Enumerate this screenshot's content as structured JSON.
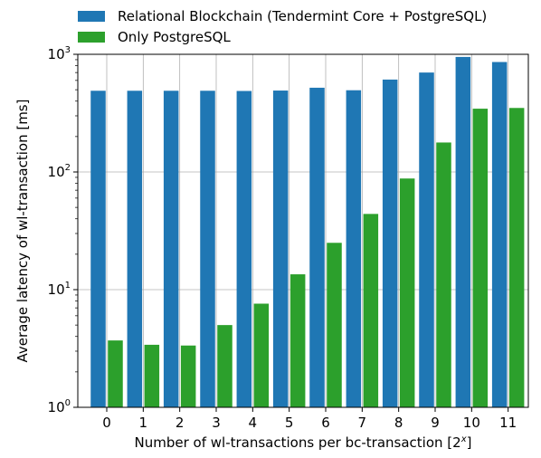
{
  "chart_data": {
    "type": "bar",
    "title": "",
    "xlabel": "Number of wl-transactions per bc-transaction [2",
    "xlabel_sup": "x",
    "xlabel_end": "]",
    "ylabel": "Average latency of wl-transaction [ms]",
    "yscale": "log",
    "ylim": [
      1,
      1000
    ],
    "yticks": [
      {
        "value": 1,
        "base": "10",
        "exp": "0"
      },
      {
        "value": 10,
        "base": "10",
        "exp": "1"
      },
      {
        "value": 100,
        "base": "10",
        "exp": "2"
      },
      {
        "value": 1000,
        "base": "10",
        "exp": "3"
      }
    ],
    "categories": [
      "0",
      "1",
      "2",
      "3",
      "4",
      "5",
      "6",
      "7",
      "8",
      "9",
      "10",
      "11"
    ],
    "grid": true,
    "legend_position": "top",
    "series": [
      {
        "name": "Relational Blockchain (Tendermint Core + PostgreSQL)",
        "color": "#1f77b4",
        "values": [
          490,
          490,
          490,
          490,
          488,
          492,
          520,
          495,
          610,
          700,
          950,
          860
        ]
      },
      {
        "name": "Only PostgreSQL",
        "color": "#2ca02c",
        "values": [
          3.7,
          3.4,
          3.35,
          5.0,
          7.6,
          13.5,
          25,
          44,
          88,
          178,
          345,
          350
        ]
      }
    ]
  }
}
